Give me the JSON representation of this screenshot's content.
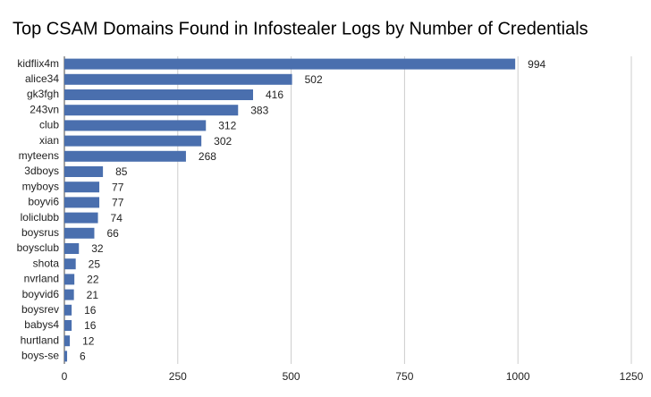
{
  "chart_data": {
    "type": "bar",
    "orientation": "horizontal",
    "title": "Top CSAM Domains Found in Infostealer Logs by Number of Credentials",
    "categories": [
      "kidflix4m",
      "alice34",
      "gk3fgh",
      "243vn",
      "club",
      "xian",
      "myteens",
      "3dboys",
      "myboys",
      "boyvi6",
      "loliclubb",
      "boysrus",
      "boysclub",
      "shota",
      "nvrland",
      "boyvid6",
      "boysrev",
      "babys4",
      "hurtland",
      "boys-se"
    ],
    "values": [
      994,
      502,
      416,
      383,
      312,
      302,
      268,
      85,
      77,
      77,
      74,
      66,
      32,
      25,
      22,
      21,
      16,
      16,
      12,
      6
    ],
    "color": "#4a6fae",
    "xlim": [
      0,
      1250
    ],
    "xticks": [
      0,
      250,
      500,
      750,
      1000,
      1250
    ],
    "grid": true,
    "data_labels": true
  }
}
